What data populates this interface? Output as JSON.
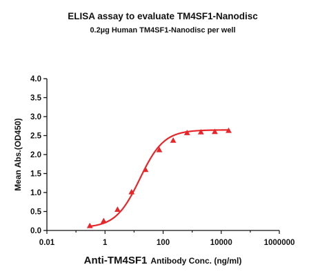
{
  "chart_data": {
    "type": "scatter",
    "title": "ELISA assay to evaluate TM4SF1-Nanodisc",
    "subtitle": "0.2µg Human TM4SF1-Nanodisc per well",
    "xlabel_main": "Anti-TM4SF1",
    "xlabel_rest": "Antibody Conc. (ng/ml)",
    "ylabel": "Mean Abs.(OD450)",
    "x_scale": "log",
    "xlim": [
      0.01,
      1000000
    ],
    "ylim": [
      0,
      4.0
    ],
    "x_ticks": [
      "0.01",
      "1",
      "100",
      "10000",
      "1000000"
    ],
    "y_ticks": [
      "0.0",
      "0.5",
      "1.0",
      "1.5",
      "2.0",
      "2.5",
      "3.0",
      "3.5",
      "4.0"
    ],
    "grid": false,
    "series": [
      {
        "color": "#e8262a",
        "marker": "triangle",
        "fit": "4PL",
        "x": [
          0.3,
          0.9,
          2.7,
          8.2,
          24.7,
          74,
          222,
          667,
          2000,
          6000,
          18000
        ],
        "y": [
          0.12,
          0.25,
          0.55,
          1.01,
          1.6,
          2.12,
          2.37,
          2.57,
          2.59,
          2.6,
          2.63
        ]
      }
    ]
  }
}
